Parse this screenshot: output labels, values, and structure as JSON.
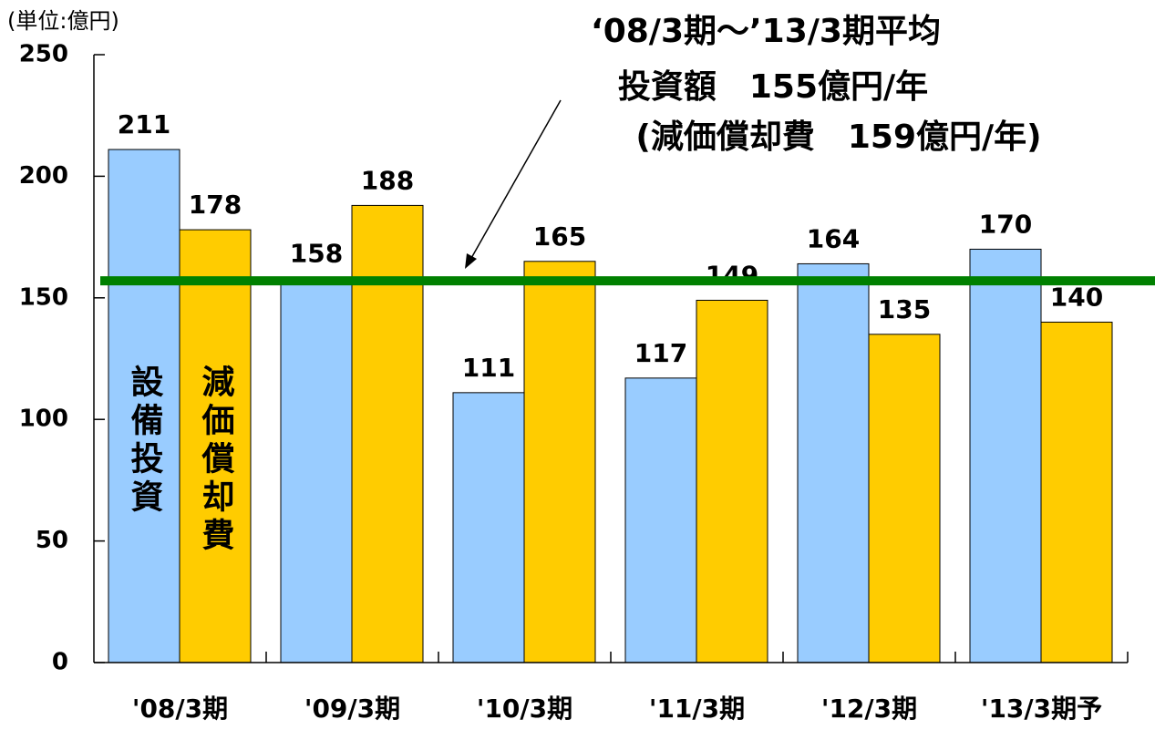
{
  "chart_data": {
    "type": "bar",
    "unit_label": "(単位:億円)",
    "annotation": [
      "‘08/3期～’13/3期平均",
      "投資額　155億円/年",
      "(減価償却費　159億円/年)"
    ],
    "categories": [
      "'08/3期",
      "'09/3期",
      "'10/3期",
      "'11/3期",
      "'12/3期",
      "'13/3期予"
    ],
    "series": [
      {
        "name": "設備投資",
        "color": "#99ccff",
        "values": [
          211,
          158,
          111,
          117,
          164,
          170
        ]
      },
      {
        "name": "減価償却費",
        "color": "#ffcc00",
        "values": [
          178,
          188,
          165,
          149,
          135,
          140
        ]
      }
    ],
    "reference_line": {
      "value": 157,
      "color": "#008000"
    },
    "ylim": [
      0,
      250
    ],
    "yticks": [
      0,
      50,
      100,
      150,
      200,
      250
    ]
  }
}
